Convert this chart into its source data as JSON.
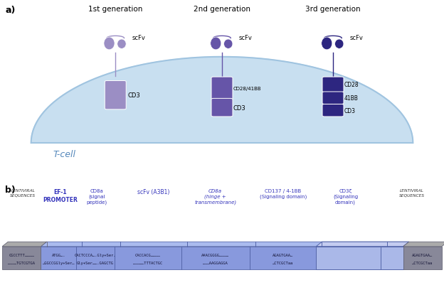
{
  "title_a": "a)",
  "title_b": "b)",
  "gen1_label": "1st generation",
  "gen2_label": "2nd generation",
  "gen3_label": "3rd generation",
  "scfv_label": "scFv",
  "tcell_label": "T-cell",
  "color_gen1": "#9b8ec4",
  "color_gen1_dark": "#7b6ea4",
  "color_gen2": "#6655a8",
  "color_gen2_dark": "#4433a0",
  "color_gen3": "#2d2680",
  "color_gen3_dark": "#1a1560",
  "color_tcell_fill": "#c8dff0",
  "color_tcell_edge": "#a0c4e0",
  "lv_label": "LENTIVIRAL\nSEQUENCES",
  "ef1_label": "EF-1\nPROMOTER",
  "cd8a_sp_label": "CD8a\n(signal\npeptide)",
  "scfv_b_label": "scFv (A3B1)",
  "cd8a_hinge_label": "CD8a\n(hinge +\ntransmembrane)",
  "cd137_label": "CD137 / 4-1BB\n(Signaling domain)",
  "cd3z_label": "CD3ζ\n(Signaling\ndomain)",
  "seq_lv_left_1": "CGCCTTT…………",
  "seq_lv_left_2": "…………TGTCGTGA",
  "seq_ef1_1": "ATGG….",
  "seq_ef1_2": "…GGCCGGly+Ser…",
  "seq_cd8a_1": "CACTCCCA….Gly+Ser.",
  "seq_cd8a_2": "Gly+Ser…….GAGCTG",
  "seq_scfv_1": "CACCACG…………",
  "seq_scfv_2": "……………TTTACTGC",
  "seq_cd137_1": "AAACGGGG…………",
  "seq_cd137_2": "………AAGGAGGA",
  "seq_cd3z_1": "AGAGTGAA…",
  "seq_cd3z_2": "…CTCGCTaa",
  "color_blue_label": "#3333bb",
  "color_black_label": "#333333",
  "color_lv_gray": "#888899",
  "color_bar_main": "#8899dd",
  "color_bar_top": "#aabbee",
  "color_bar_edge": "#5566aa",
  "color_lv_section": "#aab8e8"
}
